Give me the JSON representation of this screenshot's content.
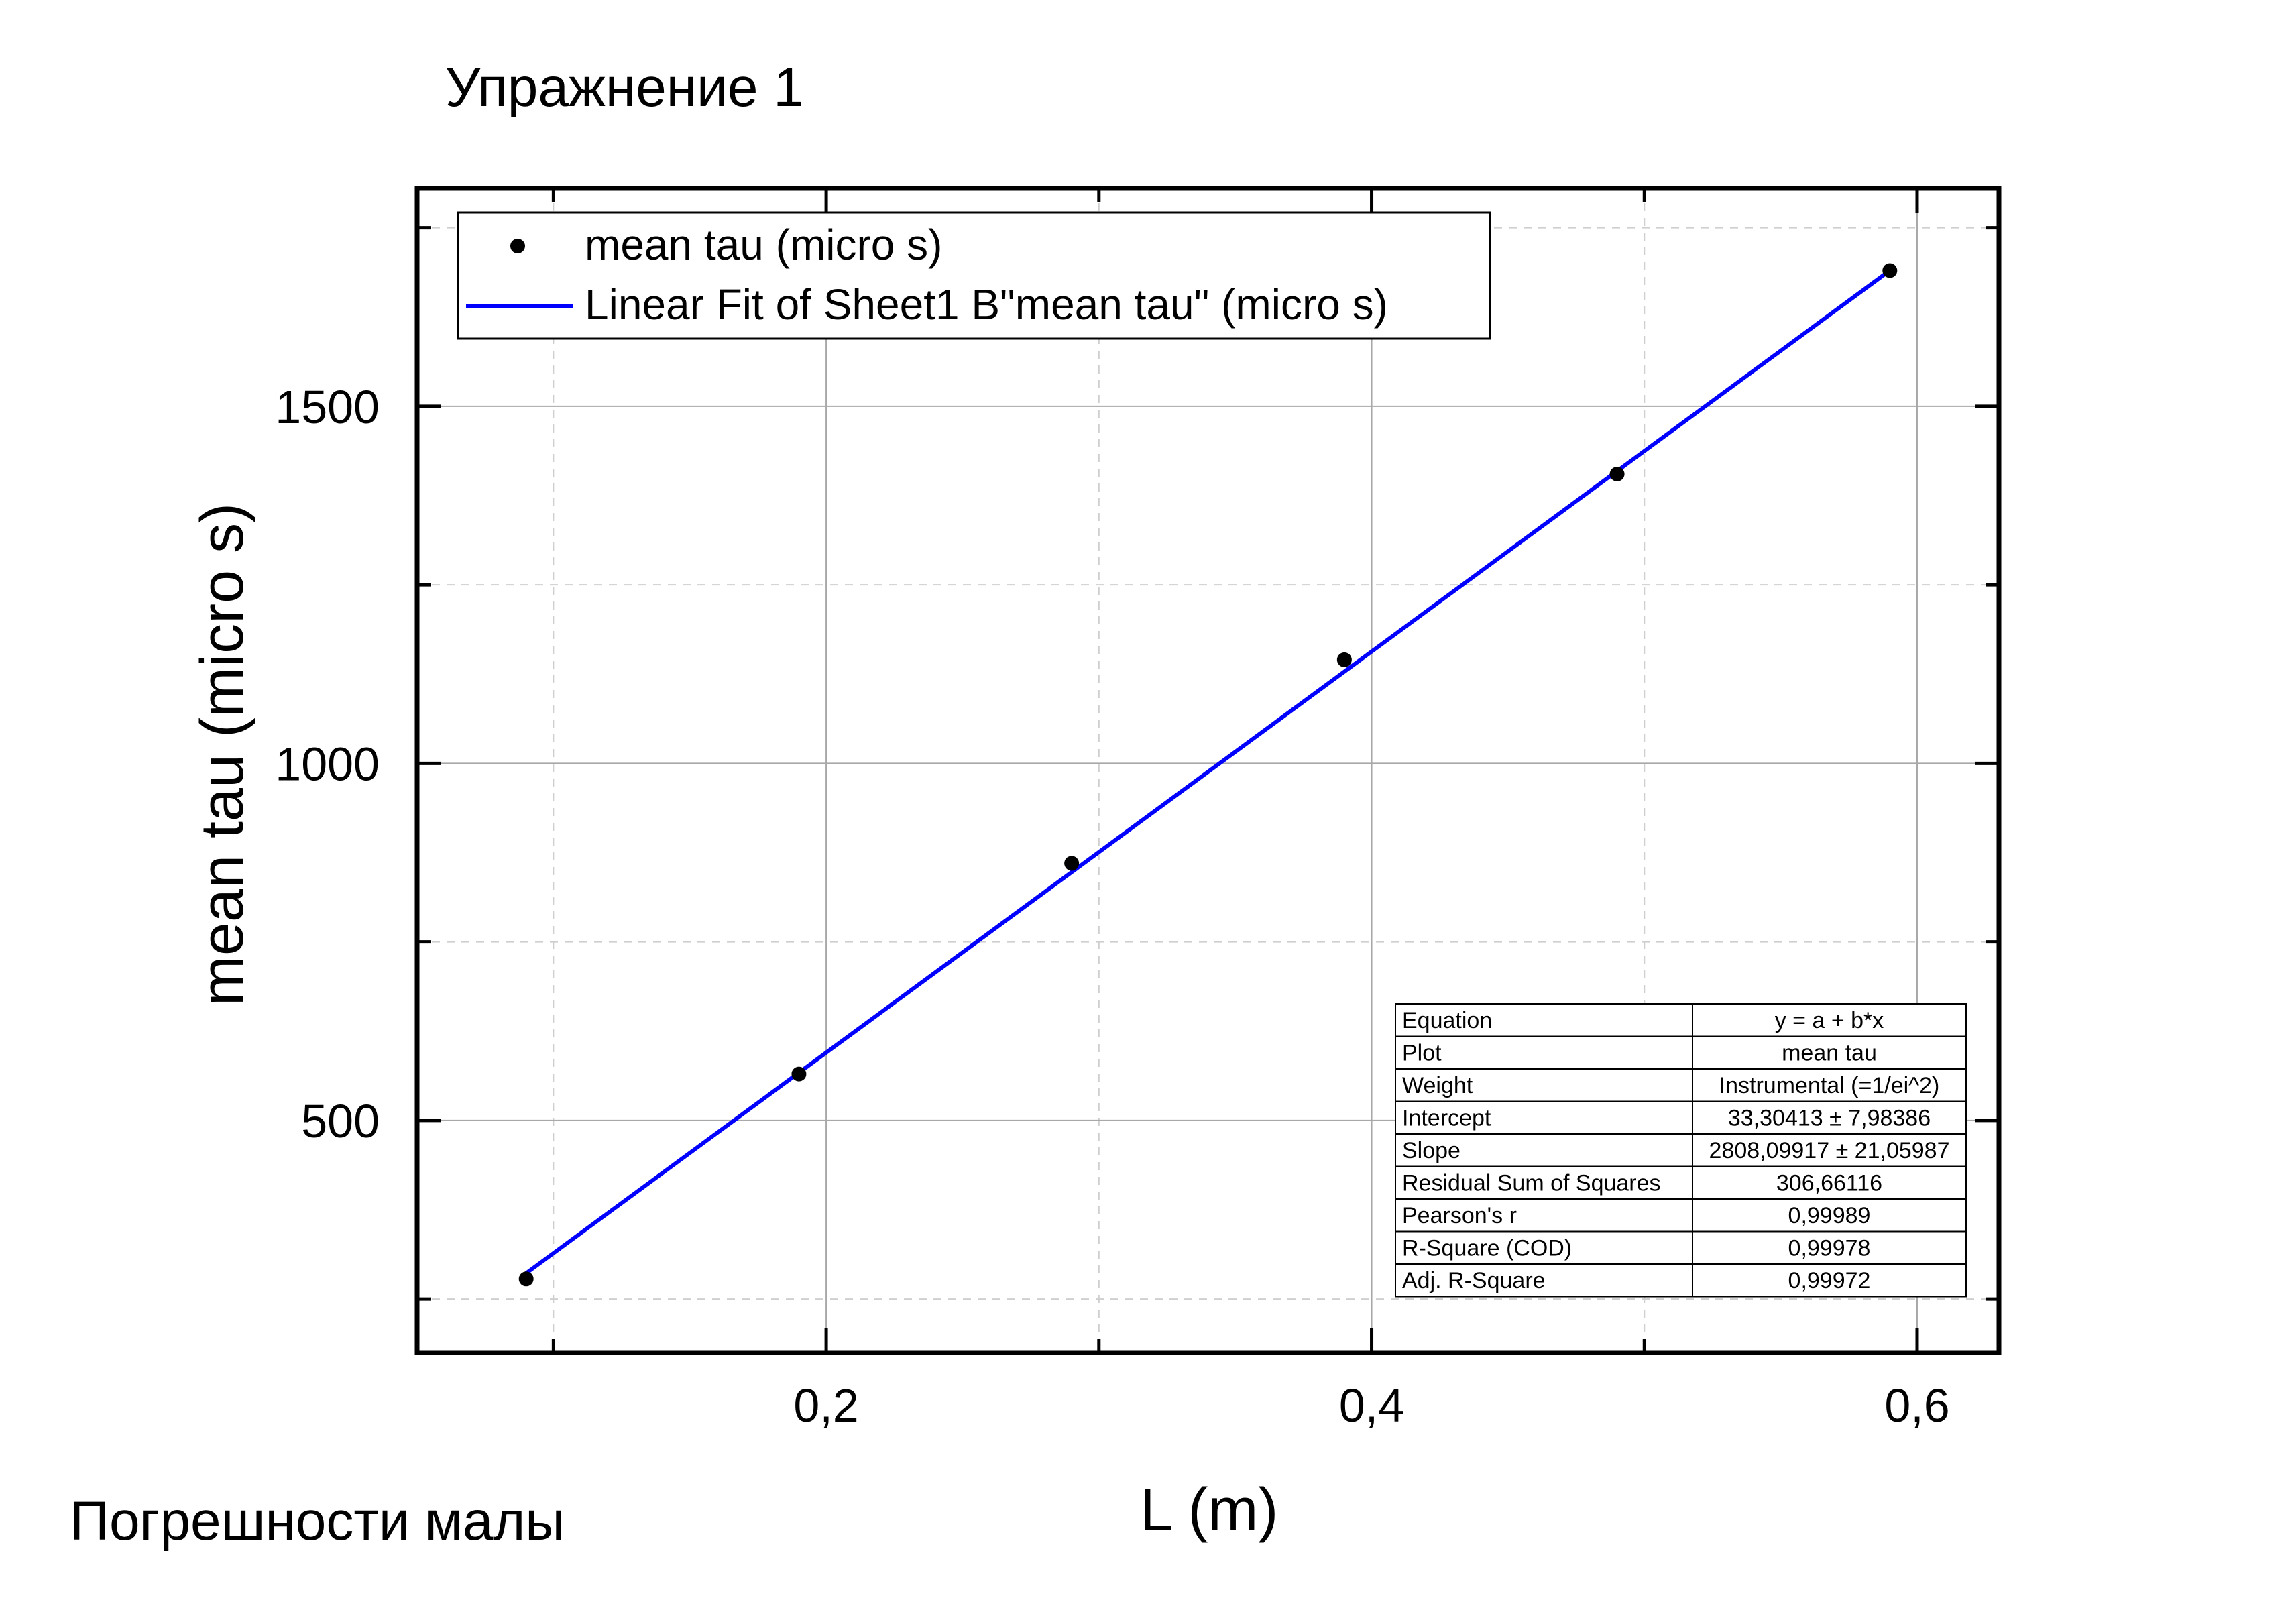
{
  "page": {
    "title": "Упражнение 1",
    "note": "Погрешности малы"
  },
  "chart_data": {
    "type": "scatter",
    "xlabel": "L (m)",
    "ylabel": "mean tau (micro s)",
    "xlim": [
      0.05,
      0.63
    ],
    "ylim": [
      175,
      1805
    ],
    "x_ticks": [
      0.2,
      0.4,
      0.6
    ],
    "x_tick_labels": [
      "0,2",
      "0,4",
      "0,6"
    ],
    "x_minor_ticks": [
      0.1,
      0.3,
      0.5
    ],
    "y_ticks": [
      500,
      1000,
      1500
    ],
    "y_tick_labels": [
      "500",
      "1000",
      "1500"
    ],
    "y_minor_ticks": [
      250,
      750,
      1250,
      1750
    ],
    "grid": true,
    "legend_position": "top-left",
    "series": [
      {
        "name": "mean tau (micro s)",
        "kind": "scatter",
        "color": "#000000",
        "x": [
          0.09,
          0.19,
          0.29,
          0.39,
          0.49,
          0.59
        ],
        "y": [
          278,
          565,
          860,
          1145,
          1405,
          1690
        ]
      },
      {
        "name": "Linear Fit of Sheet1 B\"mean tau\" (micro s)",
        "kind": "line",
        "color": "#0000ff",
        "x": [
          0.09,
          0.59
        ],
        "y": [
          286.03,
          1690.08
        ]
      }
    ],
    "fit_table": [
      [
        "Equation",
        "y = a + b*x"
      ],
      [
        "Plot",
        "mean tau"
      ],
      [
        "Weight",
        "Instrumental (=1/ei^2)"
      ],
      [
        "Intercept",
        "33,30413 ± 7,98386"
      ],
      [
        "Slope",
        "2808,09917 ± 21,05987"
      ],
      [
        "Residual Sum of Squares",
        "306,66116"
      ],
      [
        "Pearson's r",
        "0,99989"
      ],
      [
        "R-Square (COD)",
        "0,99978"
      ],
      [
        "Adj. R-Square",
        "0,99972"
      ]
    ]
  }
}
